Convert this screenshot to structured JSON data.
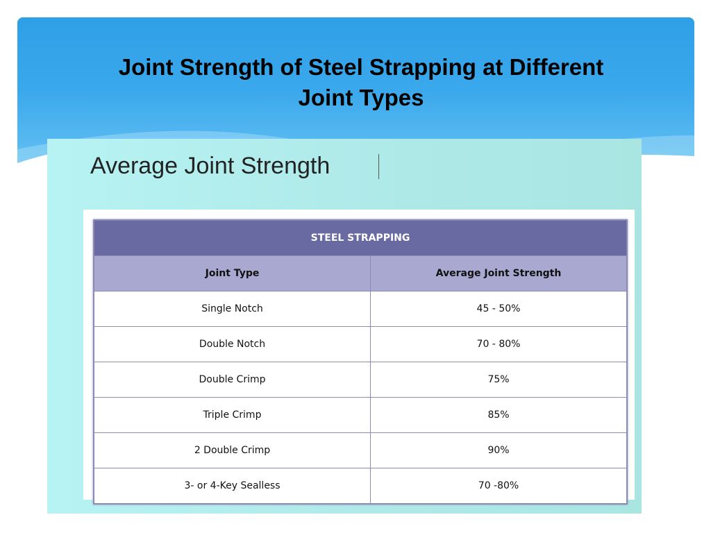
{
  "slide": {
    "title_line1": "Joint Strength of Steel Strapping at Different",
    "title_line2": "Joint Types"
  },
  "panel": {
    "heading": "Average Joint Strength"
  },
  "table": {
    "caption": "STEEL STRAPPING",
    "headers": [
      "Joint Type",
      "Average Joint Strength"
    ],
    "rows": [
      [
        "Single Notch",
        "45 - 50%"
      ],
      [
        "Double Notch",
        "70 - 80%"
      ],
      [
        "Double Crimp",
        "75%"
      ],
      [
        "Triple Crimp",
        "85%"
      ],
      [
        "2 Double Crimp",
        "90%"
      ],
      [
        "3- or 4-Key Sealless",
        "70 -80%"
      ]
    ]
  }
}
